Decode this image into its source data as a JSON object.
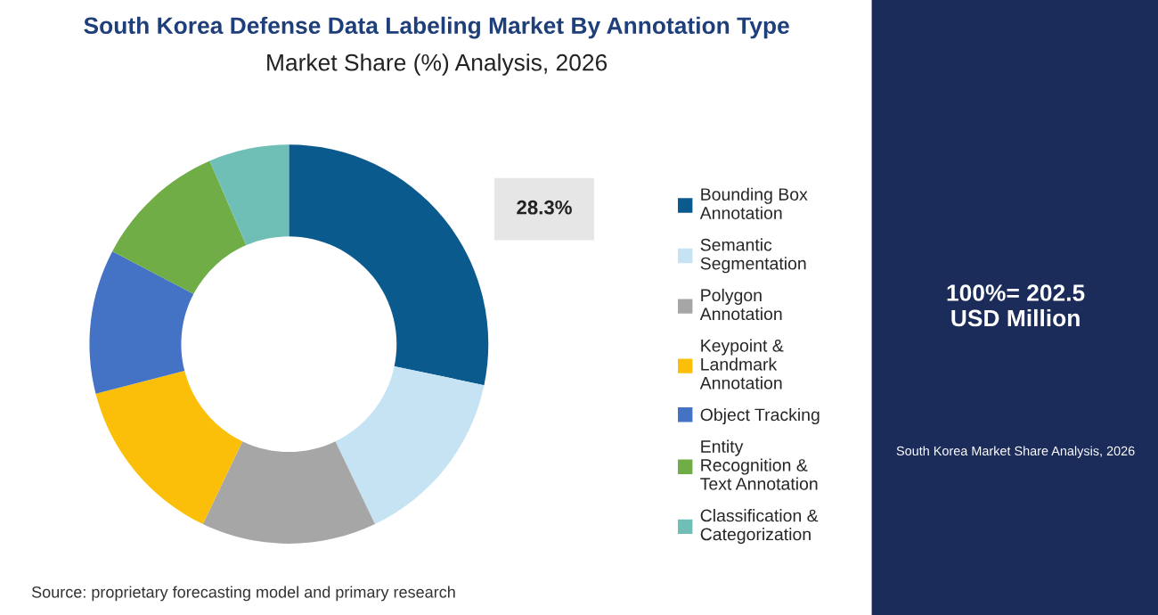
{
  "chart_data": {
    "type": "donut",
    "title": "South Korea Defense Data Labeling Market By Annotation Type",
    "subtitle": "Market Share (%) Analysis, 2026",
    "categories": [
      "Bounding Box Annotation",
      "Semantic Segmentation",
      "Polygon Annotation",
      "Keypoint & Landmark Annotation",
      "Object Tracking",
      "Entity Recognition & Text Annotation",
      "Classification & Categorization"
    ],
    "values": [
      28.3,
      14.6,
      14.2,
      13.9,
      11.7,
      10.8,
      6.5
    ],
    "colors": [
      "#0b5a8e",
      "#c5e3f3",
      "#a6a6a6",
      "#fbbf0a",
      "#4472c4",
      "#70ad47",
      "#6fbfb7"
    ],
    "value_labels": [
      "28.3%",
      null,
      null,
      null,
      null,
      null,
      null
    ],
    "legend": "right",
    "annotations": [
      "100%= 202.5 USD Million",
      "South Korea Market Share Analysis, 2026",
      "Source: proprietary forecasting model and primary research"
    ]
  }
}
